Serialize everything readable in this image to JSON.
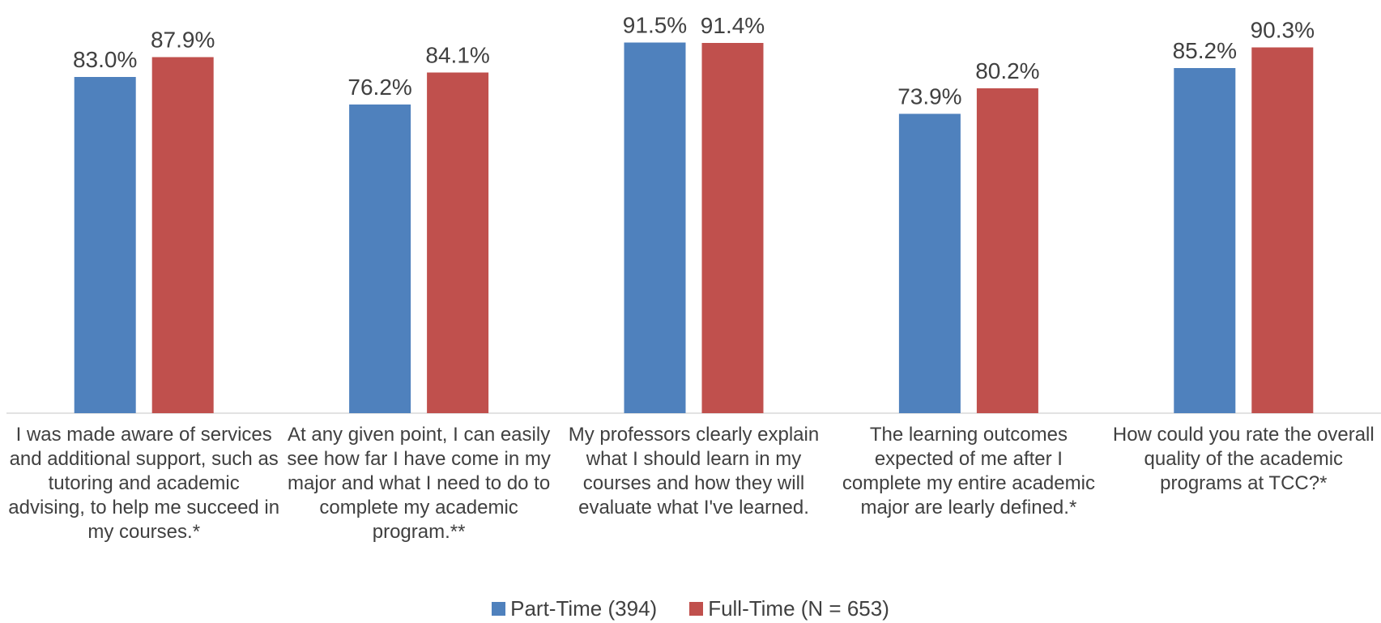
{
  "chart_data": {
    "type": "bar",
    "categories": [
      "I was made aware of services and additional support, such as tutoring and academic advising, to help me succeed in my courses.*",
      "At any given point, I can easily see how far I have come in my major and what I need to do to complete my academic program.**",
      "My professors clearly explain what I should learn in my courses and how they will evaluate what I've learned.",
      "The learning outcomes expected of me after I complete my entire academic major are learly defined.*",
      "How could you rate the overall quality of the academic programs at TCC?*"
    ],
    "series": [
      {
        "name": "Part-Time (394)",
        "color": "#4f81bd",
        "values": [
          83.0,
          76.2,
          91.5,
          73.9,
          85.2
        ],
        "value_labels": [
          "83.0%",
          "76.2%",
          "91.5%",
          "73.9%",
          "85.2%"
        ]
      },
      {
        "name": "Full-Time (N = 653)",
        "color": "#c0504d",
        "values": [
          87.9,
          84.1,
          91.4,
          80.2,
          90.3
        ],
        "value_labels": [
          "87.9%",
          "84.1%",
          "91.4%",
          "80.2%",
          "90.3%"
        ]
      }
    ],
    "ylim": [
      0,
      100
    ],
    "legend": "bottom"
  }
}
